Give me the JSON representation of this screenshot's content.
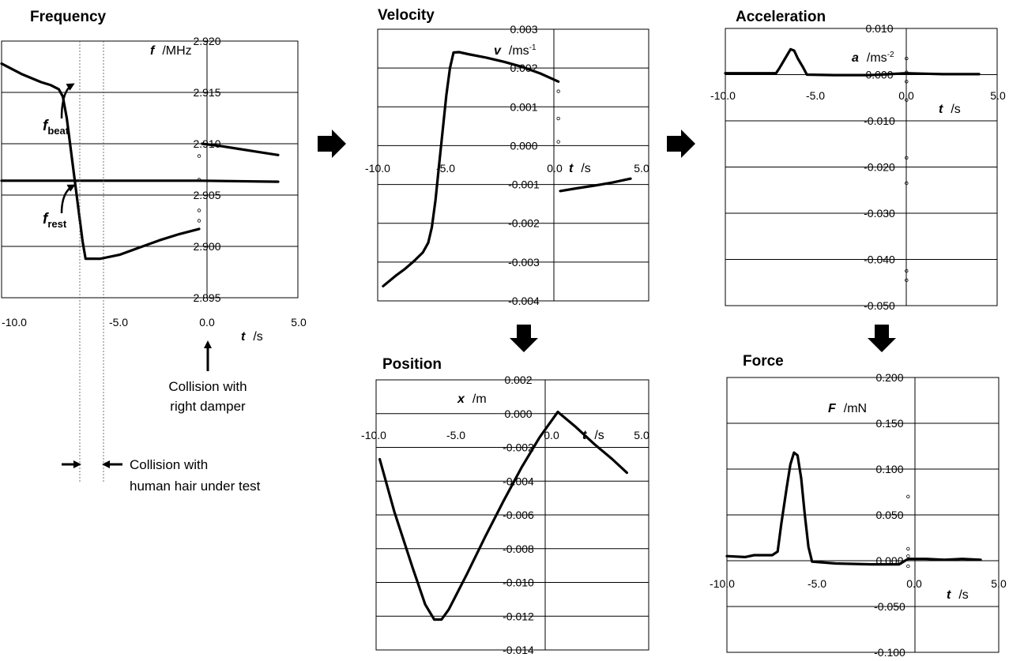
{
  "annotations": {
    "f_beat_main": "f",
    "f_beat_sub": "beat",
    "f_rest_main": "f",
    "f_rest_sub": "rest",
    "collision_damper": [
      "Collision with",
      "right damper"
    ],
    "collision_hair": [
      "Collision with",
      "human hair under test"
    ]
  },
  "chart_data": [
    {
      "id": "frequency",
      "type": "line",
      "title": "Frequency",
      "xlabel_sym": "t",
      "xlabel_unit": "/s",
      "ylabel_sym": "f",
      "ylabel_unit": "/MHz",
      "ylabel_sup": "",
      "xlim": [
        -10,
        5
      ],
      "ylim": [
        2.895,
        2.92
      ],
      "xticks": [
        "-10.0",
        "-5.0",
        "0.0",
        "5.0"
      ],
      "yticks": [
        "2.920",
        "2.915",
        "2.910",
        "2.905",
        "2.900",
        "2.895"
      ],
      "grid": "horizontal",
      "series": [
        {
          "values": [
            [
              -10,
              2.9178
            ],
            [
              -9,
              2.9168
            ],
            [
              -8,
              2.916
            ],
            [
              -7.5,
              2.9157
            ],
            [
              -7.1,
              2.9153
            ],
            [
              -6.9,
              2.9146
            ],
            [
              -6.7,
              2.9125
            ],
            [
              -6.5,
              2.9095
            ],
            [
              -6.3,
              2.9065
            ],
            [
              -6.1,
              2.9035
            ],
            [
              -5.9,
              2.9005
            ],
            [
              -5.75,
              2.8988
            ],
            [
              -5,
              2.8988
            ],
            [
              -4,
              2.8992
            ],
            [
              -3,
              2.8999
            ],
            [
              -2,
              2.9006
            ],
            [
              -1,
              2.9012
            ],
            [
              0,
              2.9017
            ]
          ]
        },
        {
          "values": [
            [
              -10,
              2.9064
            ],
            [
              -5,
              2.9064
            ],
            [
              0,
              2.9064
            ],
            [
              4,
              2.9063
            ]
          ]
        },
        {
          "values": [
            [
              0.15,
              2.91
            ],
            [
              1,
              2.9098
            ],
            [
              2,
              2.9095
            ],
            [
              3,
              2.9092
            ],
            [
              4,
              2.9089
            ]
          ]
        },
        {
          "values": [
            [
              0,
              2.9088
            ],
            [
              0,
              2.9065
            ],
            [
              0,
              2.9035
            ],
            [
              0,
              2.9025
            ]
          ],
          "style": "points"
        }
      ]
    },
    {
      "id": "velocity",
      "type": "line",
      "title": "Velocity",
      "xlabel_sym": "t",
      "xlabel_unit": "/s",
      "ylabel_sym": "v",
      "ylabel_unit": "/ms",
      "ylabel_sup": "-1",
      "xlim": [
        -10,
        5
      ],
      "ylim": [
        -0.004,
        0.003
      ],
      "xticks": [
        "-10.0",
        "-5.0",
        "0.0",
        "5.0"
      ],
      "yticks": [
        "0.003",
        "0.002",
        "0.001",
        "0.000",
        "-0.001",
        "-0.002",
        "-0.003",
        "-0.004"
      ],
      "grid": "horizontal",
      "series": [
        {
          "values": [
            [
              -9.7,
              -0.00362
            ],
            [
              -9,
              -0.00335
            ],
            [
              -8.5,
              -0.00318
            ],
            [
              -8,
              -0.00298
            ],
            [
              -7.5,
              -0.00275
            ],
            [
              -7.2,
              -0.0025
            ],
            [
              -7,
              -0.0021
            ],
            [
              -6.8,
              -0.0014
            ],
            [
              -6.6,
              -0.0005
            ],
            [
              -6.4,
              0.0004
            ],
            [
              -6.2,
              0.0013
            ],
            [
              -6,
              0.002
            ],
            [
              -5.8,
              0.0024
            ],
            [
              -5.5,
              0.00241
            ],
            [
              -5,
              0.00236
            ],
            [
              -4,
              0.00227
            ],
            [
              -3,
              0.00216
            ],
            [
              -2,
              0.00203
            ],
            [
              -1,
              0.00186
            ],
            [
              0,
              0.00165
            ]
          ]
        },
        {
          "values": [
            [
              0.1,
              -0.00117
            ],
            [
              1,
              -0.0011
            ],
            [
              2,
              -0.00103
            ],
            [
              3,
              -0.00095
            ],
            [
              4,
              -0.00085
            ]
          ]
        },
        {
          "values": [
            [
              0,
              0.0014
            ],
            [
              0,
              0.0007
            ],
            [
              0,
              0.0001
            ]
          ],
          "style": "points"
        }
      ]
    },
    {
      "id": "acceleration",
      "type": "line",
      "title": "Acceleration",
      "xlabel_sym": "t",
      "xlabel_unit": "/s",
      "ylabel_sym": "a",
      "ylabel_unit": "/ms",
      "ylabel_sup": "-2",
      "xlim": [
        -10,
        5
      ],
      "ylim": [
        -0.05,
        0.01
      ],
      "xticks": [
        "-10.0",
        "-5.0",
        "0.0",
        "5.0"
      ],
      "yticks": [
        "0.010",
        "0.000",
        "-0.010",
        "-0.020",
        "-0.030",
        "-0.040",
        "-0.050"
      ],
      "grid": "horizontal",
      "series": [
        {
          "values": [
            [
              -10,
              0.0003
            ],
            [
              -8.5,
              0.0003
            ],
            [
              -7.2,
              0.0003
            ],
            [
              -7,
              0.0015
            ],
            [
              -6.7,
              0.0035
            ],
            [
              -6.4,
              0.0055
            ],
            [
              -6.2,
              0.0052
            ],
            [
              -6,
              0.0035
            ],
            [
              -5.7,
              0.0015
            ],
            [
              -5.5,
              0
            ],
            [
              -4,
              -0.0001
            ],
            [
              -2,
              -0.0001
            ],
            [
              0,
              0.0003
            ],
            [
              1,
              0.0002
            ],
            [
              2,
              0.0001
            ],
            [
              3,
              0.0001
            ],
            [
              4,
              0.0001
            ]
          ]
        },
        {
          "values": [
            [
              0,
              0.0035
            ],
            [
              0,
              0.0005
            ],
            [
              0,
              -0.0015
            ],
            [
              0,
              -0.0055
            ],
            [
              0,
              -0.018
            ],
            [
              0,
              -0.0235
            ],
            [
              0,
              -0.0425
            ],
            [
              0,
              -0.0445
            ]
          ],
          "style": "points"
        }
      ]
    },
    {
      "id": "position",
      "type": "line",
      "title": "Position",
      "xlabel_sym": "t",
      "xlabel_unit": "/s",
      "ylabel_sym": "x",
      "ylabel_unit": "/m",
      "ylabel_sup": "",
      "xlim": [
        -10,
        5
      ],
      "ylim": [
        -0.014,
        0.002
      ],
      "xticks": [
        "-10.0",
        "-5.0",
        "0.0",
        "5.0"
      ],
      "yticks": [
        "0.002",
        "0.000",
        "-0.002",
        "-0.004",
        "-0.006",
        "-0.008",
        "-0.010",
        "-0.012",
        "-0.014"
      ],
      "grid": "horizontal",
      "series": [
        {
          "values": [
            [
              -9.8,
              -0.0027
            ],
            [
              -9,
              -0.0058
            ],
            [
              -8,
              -0.0091
            ],
            [
              -7.3,
              -0.0113
            ],
            [
              -6.8,
              -0.0122
            ],
            [
              -6.4,
              -0.0122
            ],
            [
              -6,
              -0.0116
            ],
            [
              -5,
              -0.0095
            ],
            [
              -4,
              -0.0073
            ],
            [
              -3,
              -0.0052
            ],
            [
              -2,
              -0.0032
            ],
            [
              -1,
              -0.0014
            ],
            [
              0,
              0.0001
            ],
            [
              1,
              -0.0008
            ],
            [
              2,
              -0.0018
            ],
            [
              3,
              -0.0027
            ],
            [
              3.8,
              -0.0035
            ]
          ]
        }
      ]
    },
    {
      "id": "force",
      "type": "line",
      "title": "Force",
      "xlabel_sym": "t",
      "xlabel_unit": "/s",
      "ylabel_sym": "F",
      "ylabel_unit": "/mN",
      "ylabel_sup": "",
      "xlim": [
        -10,
        5
      ],
      "ylim": [
        -0.1,
        0.2
      ],
      "xticks": [
        "-10.0",
        "-5.0",
        "0.0",
        "5.0"
      ],
      "yticks": [
        "0.200",
        "0.150",
        "0.100",
        "0.050",
        "0.000",
        "-0.050",
        "-0.100"
      ],
      "grid": "horizontal",
      "series": [
        {
          "values": [
            [
              -10,
              0.005
            ],
            [
              -9,
              0.004
            ],
            [
              -8.5,
              0.006
            ],
            [
              -7.5,
              0.006
            ],
            [
              -7.2,
              0.01
            ],
            [
              -7,
              0.04
            ],
            [
              -6.7,
              0.08
            ],
            [
              -6.5,
              0.105
            ],
            [
              -6.3,
              0.118
            ],
            [
              -6.1,
              0.115
            ],
            [
              -5.9,
              0.09
            ],
            [
              -5.7,
              0.05
            ],
            [
              -5.5,
              0.015
            ],
            [
              -5.3,
              -0.001
            ],
            [
              -4,
              -0.003
            ],
            [
              -2,
              -0.004
            ],
            [
              -0.5,
              -0.004
            ],
            [
              0,
              0.002
            ],
            [
              1,
              0.002
            ],
            [
              2,
              0.001
            ],
            [
              3,
              0.002
            ],
            [
              4,
              0.001
            ]
          ]
        },
        {
          "values": [
            [
              0,
              0.07
            ],
            [
              0,
              0.013
            ],
            [
              0,
              0.005
            ],
            [
              0,
              -0.006
            ]
          ],
          "style": "points"
        }
      ]
    }
  ]
}
